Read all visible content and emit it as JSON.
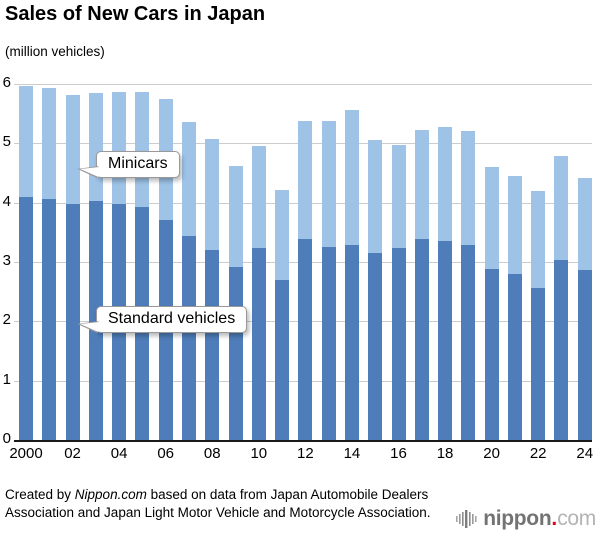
{
  "title": "Sales of New Cars in Japan",
  "unit_label": "(million vehicles)",
  "annotations": {
    "minicars_label": "Minicars",
    "standard_label": "Standard vehicles"
  },
  "footer": {
    "prefix": "Created by ",
    "brand": "Nippon.com",
    "suffix": " based on data from Japan Automobile Dealers Association and Japan Light Motor Vehicle and Motorcycle Association."
  },
  "logo": {
    "word": "nippon",
    "dot": ".",
    "tld": "com"
  },
  "colors": {
    "standard_bar": "#4e7db9",
    "minicar_bar": "#9fc3e7",
    "gridline": "#cccccc",
    "axis_line": "#1a1a1a",
    "logo_gray": "#737373",
    "logo_red": "#e60012"
  },
  "chart_data": {
    "type": "bar",
    "stacked": true,
    "title": "Sales of New Cars in Japan",
    "ylabel": "(million vehicles)",
    "ylim": [
      0,
      6
    ],
    "yticks": [
      0,
      1,
      2,
      3,
      4,
      5,
      6
    ],
    "grid": true,
    "legend_position": "inline-callouts",
    "x": [
      2000,
      2001,
      2002,
      2003,
      2004,
      2005,
      2006,
      2007,
      2008,
      2009,
      2010,
      2011,
      2012,
      2013,
      2014,
      2015,
      2016,
      2017,
      2018,
      2019,
      2020,
      2021,
      2022,
      2023,
      2024
    ],
    "x_tick_labels": [
      "2000",
      "",
      "02",
      "",
      "04",
      "",
      "06",
      "",
      "08",
      "",
      "10",
      "",
      "12",
      "",
      "14",
      "",
      "16",
      "",
      "18",
      "",
      "20",
      "",
      "22",
      "",
      "24"
    ],
    "series": [
      {
        "name": "Standard vehicles",
        "color": "#4e7db9",
        "values": [
          4.1,
          4.06,
          3.97,
          4.03,
          3.97,
          3.93,
          3.7,
          3.44,
          3.21,
          2.92,
          3.23,
          2.7,
          3.39,
          3.26,
          3.29,
          3.15,
          3.24,
          3.39,
          3.35,
          3.28,
          2.89,
          2.8,
          2.57,
          3.04,
          2.86
        ]
      },
      {
        "name": "Minicars",
        "color": "#9fc3e7",
        "values": [
          1.86,
          1.87,
          1.85,
          1.82,
          1.9,
          1.94,
          2.04,
          1.92,
          1.87,
          1.69,
          1.73,
          1.51,
          1.98,
          2.12,
          2.27,
          1.9,
          1.73,
          1.84,
          1.92,
          1.92,
          1.71,
          1.65,
          1.63,
          1.74,
          1.56
        ]
      }
    ],
    "totals": [
      5.96,
      5.93,
      5.82,
      5.85,
      5.87,
      5.87,
      5.74,
      5.36,
      5.08,
      4.61,
      4.96,
      4.21,
      5.37,
      5.38,
      5.56,
      5.05,
      4.97,
      5.23,
      5.27,
      5.2,
      4.6,
      4.45,
      4.2,
      4.78,
      4.42
    ]
  }
}
